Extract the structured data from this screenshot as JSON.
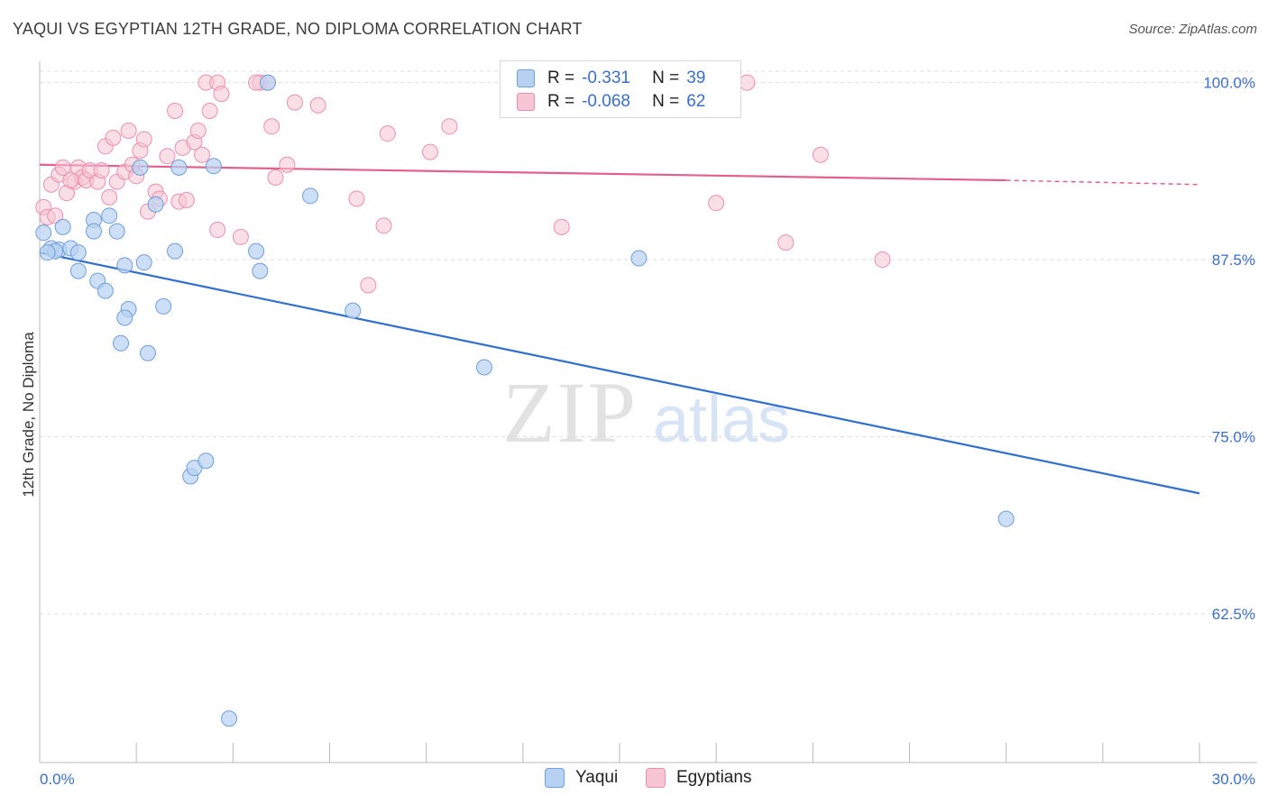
{
  "title": "YAQUI VS EGYPTIAN 12TH GRADE, NO DIPLOMA CORRELATION CHART",
  "source": "Source: ZipAtlas.com",
  "watermark": {
    "zip": "ZIP",
    "atlas": "atlas"
  },
  "legend": {
    "rows": [
      {
        "r_label": "R =",
        "r_value": "-0.331",
        "n_label": "N =",
        "n_value": "39"
      },
      {
        "r_label": "R =",
        "r_value": "-0.068",
        "n_label": "N =",
        "n_value": "62"
      }
    ]
  },
  "bottom_legend": {
    "yaqui": "Yaqui",
    "egyptians": "Egyptians"
  },
  "colors": {
    "yaqui_fill": "#b8d1f2",
    "yaqui_stroke": "#6f9fdc",
    "yaqui_line": "#2f6fd0",
    "egypt_fill": "#f8c5d4",
    "egypt_stroke": "#ec8fae",
    "egypt_line": "#e4608c",
    "tick_label": "#3a6fc9",
    "grid": "#dddddd"
  },
  "chart_data": {
    "type": "scatter",
    "title": "YAQUI VS EGYPTIAN 12TH GRADE, NO DIPLOMA CORRELATION CHART",
    "xlabel": "",
    "ylabel": "12th Grade, No Diploma",
    "xlim": [
      0,
      30
    ],
    "ylim": [
      52,
      101.5
    ],
    "x_tick_labels": [
      "0.0%",
      "30.0%"
    ],
    "y_ticks": [
      62.5,
      75.0,
      87.5,
      100.0
    ],
    "y_tick_labels": [
      "62.5%",
      "75.0%",
      "87.5%",
      "100.0%"
    ],
    "grid": true,
    "series": [
      {
        "name": "Yaqui",
        "r": -0.331,
        "n": 39,
        "trend": {
          "x": [
            0,
            30
          ],
          "y": [
            88.0,
            71.0
          ]
        },
        "points": [
          [
            0.1,
            89.4
          ],
          [
            0.3,
            88.3
          ],
          [
            0.5,
            88.2
          ],
          [
            0.6,
            89.8
          ],
          [
            0.4,
            88.1
          ],
          [
            0.8,
            88.3
          ],
          [
            1.0,
            88.0
          ],
          [
            1.4,
            90.3
          ],
          [
            1.4,
            89.5
          ],
          [
            1.8,
            90.6
          ],
          [
            2.0,
            89.5
          ],
          [
            1.0,
            86.7
          ],
          [
            1.5,
            86.0
          ],
          [
            1.7,
            85.3
          ],
          [
            2.2,
            87.1
          ],
          [
            2.7,
            87.3
          ],
          [
            2.3,
            84.0
          ],
          [
            2.2,
            83.4
          ],
          [
            2.1,
            81.6
          ],
          [
            2.8,
            80.9
          ],
          [
            3.2,
            84.2
          ],
          [
            3.5,
            88.1
          ],
          [
            2.6,
            94.0
          ],
          [
            3.0,
            91.4
          ],
          [
            3.6,
            94.0
          ],
          [
            4.5,
            94.1
          ],
          [
            5.6,
            88.1
          ],
          [
            5.7,
            86.7
          ],
          [
            5.9,
            100.0
          ],
          [
            7.0,
            92.0
          ],
          [
            8.1,
            83.9
          ],
          [
            11.5,
            79.9
          ],
          [
            15.5,
            87.6
          ],
          [
            3.9,
            72.2
          ],
          [
            4.0,
            72.8
          ],
          [
            4.3,
            73.3
          ],
          [
            4.9,
            55.1
          ],
          [
            25.0,
            69.2
          ],
          [
            0.2,
            88.0
          ]
        ]
      },
      {
        "name": "Egyptians",
        "r": -0.068,
        "n": 62,
        "trend": {
          "x": [
            0,
            25
          ],
          "y": [
            94.2,
            93.1
          ]
        },
        "trend_dashed": {
          "x": [
            25,
            30
          ],
          "y": [
            93.1,
            92.8
          ]
        },
        "points": [
          [
            0.1,
            91.2
          ],
          [
            0.2,
            90.5
          ],
          [
            0.4,
            90.6
          ],
          [
            0.3,
            92.8
          ],
          [
            0.5,
            93.5
          ],
          [
            0.6,
            94.0
          ],
          [
            0.7,
            92.2
          ],
          [
            0.9,
            93.0
          ],
          [
            1.0,
            94.0
          ],
          [
            1.1,
            93.3
          ],
          [
            1.2,
            93.1
          ],
          [
            1.3,
            93.8
          ],
          [
            1.5,
            93.0
          ],
          [
            1.6,
            93.8
          ],
          [
            1.7,
            95.5
          ],
          [
            1.8,
            91.9
          ],
          [
            1.9,
            96.1
          ],
          [
            2.0,
            93.0
          ],
          [
            2.2,
            93.7
          ],
          [
            2.3,
            96.6
          ],
          [
            2.4,
            94.2
          ],
          [
            2.5,
            93.4
          ],
          [
            2.6,
            95.2
          ],
          [
            2.7,
            96.0
          ],
          [
            2.8,
            90.9
          ],
          [
            3.0,
            92.3
          ],
          [
            3.1,
            91.8
          ],
          [
            3.3,
            94.8
          ],
          [
            3.5,
            98.0
          ],
          [
            3.6,
            91.6
          ],
          [
            3.7,
            95.4
          ],
          [
            3.8,
            91.7
          ],
          [
            4.0,
            95.8
          ],
          [
            4.1,
            96.6
          ],
          [
            4.2,
            94.9
          ],
          [
            4.3,
            100.0
          ],
          [
            4.4,
            98.0
          ],
          [
            4.6,
            100.0
          ],
          [
            4.7,
            99.2
          ],
          [
            4.6,
            89.6
          ],
          [
            5.2,
            89.1
          ],
          [
            5.7,
            100.0
          ],
          [
            5.9,
            100.0
          ],
          [
            6.0,
            96.9
          ],
          [
            6.1,
            93.3
          ],
          [
            6.4,
            94.2
          ],
          [
            6.6,
            98.6
          ],
          [
            7.2,
            98.4
          ],
          [
            8.2,
            91.8
          ],
          [
            8.5,
            85.7
          ],
          [
            8.9,
            89.9
          ],
          [
            9.0,
            96.4
          ],
          [
            10.1,
            95.1
          ],
          [
            10.6,
            96.9
          ],
          [
            13.5,
            89.8
          ],
          [
            17.5,
            91.5
          ],
          [
            18.3,
            100.0
          ],
          [
            19.3,
            88.7
          ],
          [
            20.2,
            94.9
          ],
          [
            21.8,
            87.5
          ],
          [
            5.6,
            100.0
          ],
          [
            0.8,
            93.1
          ]
        ]
      }
    ]
  }
}
